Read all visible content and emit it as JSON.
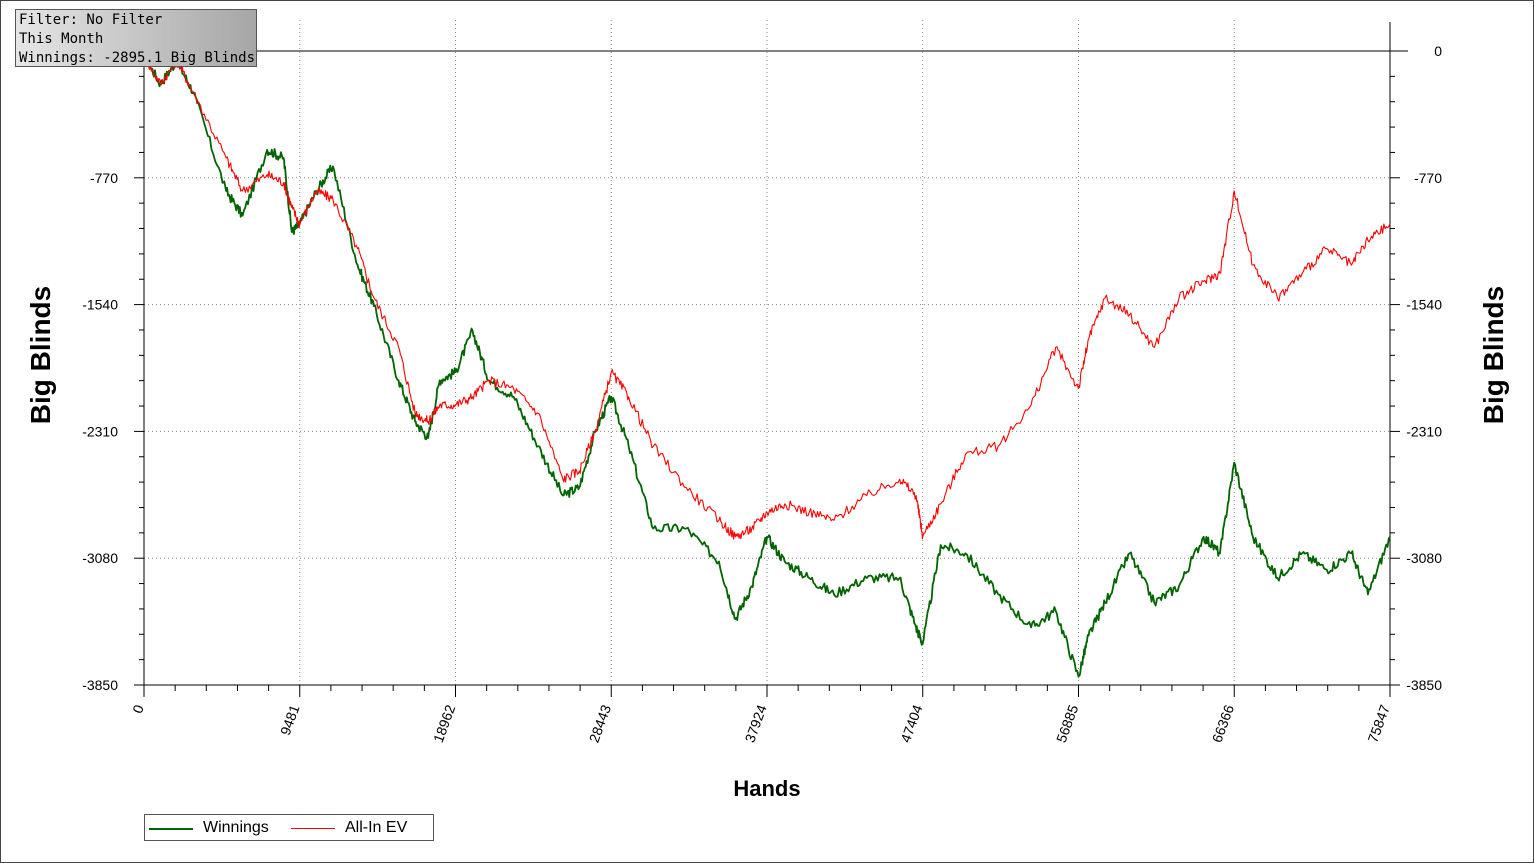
{
  "info_box": {
    "line1": "Filter: No Filter",
    "line2": "This Month",
    "line3": "Winnings: -2895.1 Big Blinds"
  },
  "chart_data": {
    "type": "line",
    "xlabel": "Hands",
    "ylabel_left": "Big Blinds",
    "ylabel_right": "Big Blinds",
    "xlim": [
      0,
      75847
    ],
    "ylim": [
      -3850,
      0
    ],
    "x_ticks": [
      "0",
      "9481",
      "18962",
      "28443",
      "37924",
      "47404",
      "56885",
      "66366",
      "75847"
    ],
    "y_ticks": [
      "0",
      "-770",
      "-1540",
      "-2310",
      "-3080",
      "-3850"
    ],
    "grid": true,
    "legend_position": "bottom-left",
    "x": [
      0,
      1000,
      2000,
      3000,
      5000,
      6000,
      7500,
      8500,
      9000,
      9481,
      10500,
      11500,
      13000,
      14000,
      15500,
      16500,
      17300,
      18000,
      18962,
      20000,
      21000,
      22500,
      24000,
      25500,
      26500,
      27500,
      28443,
      29500,
      31000,
      33000,
      35000,
      36000,
      37000,
      37924,
      39000,
      40500,
      42000,
      44000,
      46000,
      47000,
      47404,
      48500,
      50000,
      52000,
      54000,
      55500,
      56885,
      57500,
      58500,
      60000,
      61500,
      63000,
      64500,
      65500,
      66366,
      67500,
      69000,
      70500,
      72000,
      73500,
      74500,
      75847
    ],
    "series": [
      {
        "name": "Winnings",
        "color": "#006400",
        "values": [
          -30,
          -200,
          -60,
          -250,
          -850,
          -1000,
          -600,
          -650,
          -1100,
          -1050,
          -850,
          -700,
          -1300,
          -1550,
          -2000,
          -2250,
          -2350,
          -2000,
          -1950,
          -1700,
          -2000,
          -2100,
          -2400,
          -2700,
          -2650,
          -2300,
          -2100,
          -2400,
          -2900,
          -2900,
          -3100,
          -3450,
          -3250,
          -2950,
          -3100,
          -3200,
          -3300,
          -3200,
          -3200,
          -3500,
          -3600,
          -3000,
          -3050,
          -3300,
          -3500,
          -3400,
          -3800,
          -3550,
          -3350,
          -3050,
          -3350,
          -3250,
          -2950,
          -3050,
          -2500,
          -2950,
          -3200,
          -3050,
          -3150,
          -3050,
          -3300,
          -2950
        ]
      },
      {
        "name": "All-In EV",
        "color": "#ff0000",
        "values": [
          -30,
          -200,
          -60,
          -250,
          -650,
          -850,
          -750,
          -800,
          -950,
          -1050,
          -850,
          -900,
          -1200,
          -1500,
          -1800,
          -2200,
          -2250,
          -2150,
          -2150,
          -2100,
          -2000,
          -2050,
          -2200,
          -2600,
          -2550,
          -2300,
          -1950,
          -2100,
          -2400,
          -2650,
          -2850,
          -2950,
          -2900,
          -2800,
          -2750,
          -2800,
          -2850,
          -2700,
          -2600,
          -2700,
          -2950,
          -2750,
          -2450,
          -2400,
          -2150,
          -1800,
          -2050,
          -1750,
          -1500,
          -1600,
          -1800,
          -1500,
          -1400,
          -1350,
          -850,
          -1300,
          -1500,
          -1350,
          -1200,
          -1300,
          -1150,
          -1050
        ]
      }
    ]
  },
  "legend": {
    "winnings_label": "Winnings",
    "allin_label": "All-In EV"
  }
}
